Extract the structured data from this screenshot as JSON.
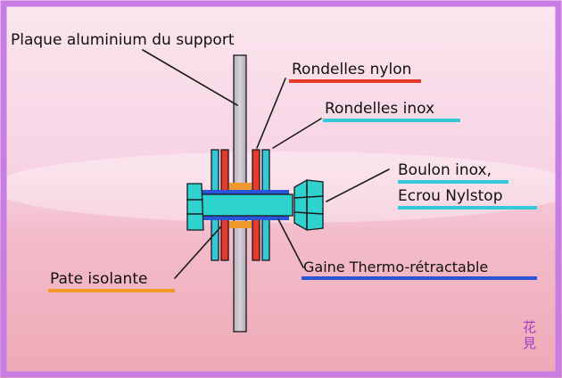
{
  "labels": {
    "plate": "Plaque aluminium du support",
    "nylon_washers": "Rondelles nylon",
    "inox_washers": "Rondelles inox",
    "bolt_line1": "Boulon inox,",
    "bolt_line2": "Ecrou Nylstop",
    "paste": "Pate isolante",
    "sleeve": "Gaine Thermo-rétractable"
  },
  "seal_text": "花見",
  "colors": {
    "frame": "#c77de3",
    "sky_top": "#f6c9df",
    "sea": "#f1b8c4",
    "plate": "#c9c3cc",
    "bolt": "#2ed3d0",
    "nylon": "#e53a2c",
    "inox": "#35c8d8",
    "paste": "#f2992b",
    "sleeve": "#2a55d8"
  }
}
